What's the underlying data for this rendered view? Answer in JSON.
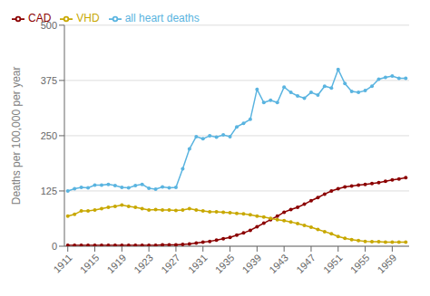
{
  "chart_data": {
    "type": "line",
    "ylabel": "Deaths per 100,000 per year",
    "x": [
      1911,
      1912,
      1913,
      1914,
      1915,
      1916,
      1917,
      1918,
      1919,
      1920,
      1921,
      1922,
      1923,
      1924,
      1925,
      1926,
      1927,
      1928,
      1929,
      1930,
      1931,
      1932,
      1933,
      1934,
      1935,
      1936,
      1937,
      1938,
      1939,
      1940,
      1941,
      1942,
      1943,
      1944,
      1945,
      1946,
      1947,
      1948,
      1949,
      1950,
      1951,
      1952,
      1953,
      1954,
      1955,
      1956,
      1957,
      1958,
      1959,
      1960,
      1961
    ],
    "series": [
      {
        "name": "all heart deaths",
        "color": "#5ab4e0",
        "values": [
          125,
          130,
          133,
          132,
          138,
          138,
          140,
          137,
          133,
          132,
          137,
          140,
          131,
          129,
          134,
          132,
          133,
          175,
          220,
          248,
          243,
          250,
          247,
          252,
          248,
          270,
          278,
          287,
          355,
          325,
          330,
          325,
          360,
          348,
          340,
          335,
          348,
          342,
          362,
          358,
          400,
          368,
          350,
          348,
          352,
          362,
          378,
          382,
          385,
          380,
          380
        ]
      },
      {
        "name": "CAD",
        "color": "#8b0000",
        "values": [
          2,
          2,
          2,
          2,
          2,
          2,
          2,
          2,
          2,
          2,
          2,
          2,
          2,
          2,
          3,
          3,
          3,
          4,
          5,
          7,
          9,
          11,
          14,
          17,
          20,
          25,
          30,
          36,
          44,
          52,
          60,
          68,
          77,
          83,
          88,
          95,
          103,
          110,
          118,
          125,
          130,
          134,
          136,
          138,
          140,
          142,
          144,
          147,
          150,
          152,
          155
        ]
      },
      {
        "name": "VHD",
        "color": "#c8a800",
        "values": [
          68,
          72,
          80,
          80,
          82,
          85,
          88,
          90,
          93,
          90,
          88,
          85,
          82,
          83,
          82,
          82,
          81,
          82,
          85,
          82,
          80,
          78,
          78,
          77,
          76,
          74,
          73,
          71,
          68,
          66,
          63,
          60,
          58,
          55,
          51,
          47,
          43,
          38,
          33,
          28,
          22,
          18,
          15,
          13,
          11,
          10,
          10,
          9,
          9,
          9,
          9
        ]
      }
    ],
    "xlim": [
      1910.5,
      1961.5
    ],
    "xticks": [
      1911,
      1915,
      1919,
      1923,
      1927,
      1931,
      1935,
      1939,
      1943,
      1947,
      1951,
      1955,
      1959
    ],
    "ylim": [
      0,
      500
    ],
    "yticks": [
      0,
      125,
      250,
      375,
      500
    ],
    "grid": true,
    "legend": "upper left",
    "marker": "circle"
  }
}
